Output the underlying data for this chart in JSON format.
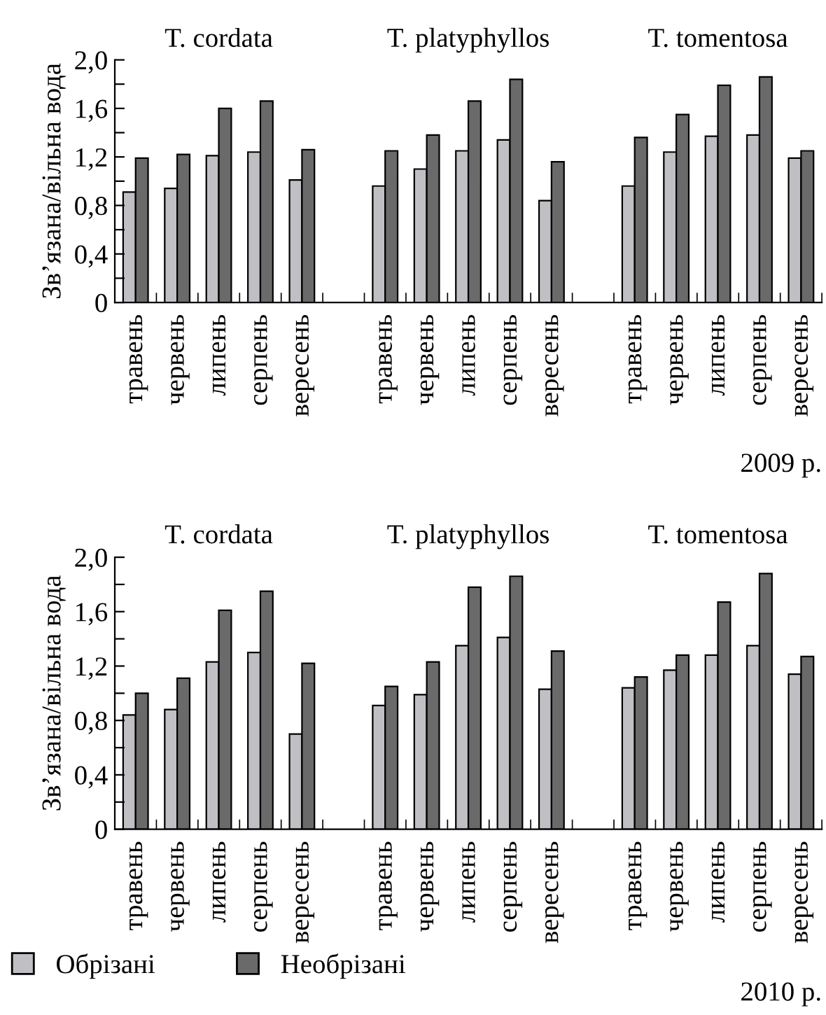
{
  "chart_data": [
    {
      "type": "bar",
      "ylabel": "Зв’язана/вільна вода",
      "categories": [
        "травень",
        "червень",
        "липень",
        "серпень",
        "вересень",
        null,
        "травень",
        "червень",
        "липень",
        "серпень",
        "вересень",
        null,
        "травень",
        "червень",
        "липень",
        "серпень",
        "вересень"
      ],
      "series": [
        {
          "color": "#c0c0c4",
          "values": [
            0.91,
            0.94,
            1.21,
            1.24,
            1.01,
            null,
            0.96,
            1.1,
            1.25,
            1.34,
            0.84,
            null,
            0.96,
            1.24,
            1.37,
            1.38,
            1.19
          ]
        },
        {
          "color": "#6a6a6a",
          "values": [
            1.19,
            1.22,
            1.6,
            1.66,
            1.26,
            null,
            1.25,
            1.38,
            1.66,
            1.84,
            1.16,
            null,
            1.36,
            1.55,
            1.79,
            1.86,
            1.25
          ]
        }
      ],
      "ylim": [
        0,
        2.0
      ],
      "yticks": [
        0,
        {
          "value": 0.2,
          "label": null
        },
        {
          "value": 0.4,
          "label": "0,4"
        },
        {
          "value": 0.6,
          "label": null
        },
        {
          "value": 0.8,
          "label": "0,8"
        },
        {
          "value": 1.0,
          "label": null
        },
        {
          "value": 1.2,
          "label": "1,2"
        },
        {
          "value": 1.4,
          "label": null
        },
        {
          "value": 1.6,
          "label": "1,6"
        },
        {
          "value": 1.8,
          "label": null
        },
        {
          "value": 2.0,
          "label": "2,0"
        }
      ],
      "grid": false,
      "legend": false,
      "annotations": [
        "T. cordata",
        "T. platyphyllos",
        "T. tomentosa",
        "2009 р."
      ]
    },
    {
      "type": "bar",
      "ylabel": "Зв’язана/вільна вода",
      "categories": [
        "травень",
        "червень",
        "липень",
        "серпень",
        "вересень",
        null,
        "травень",
        "червень",
        "липень",
        "серпень",
        "вересень",
        null,
        "травень",
        "червень",
        "липень",
        "серпень",
        "вересень"
      ],
      "series": [
        {
          "name": "Обрізані",
          "color": "#c0c0c4",
          "values": [
            0.84,
            0.88,
            1.23,
            1.3,
            0.7,
            null,
            0.91,
            0.99,
            1.35,
            1.41,
            1.03,
            null,
            1.04,
            1.17,
            1.28,
            1.35,
            1.14
          ]
        },
        {
          "name": "Необрізані",
          "color": "#6a6a6a",
          "values": [
            1.0,
            1.11,
            1.61,
            1.75,
            1.22,
            null,
            1.05,
            1.23,
            1.78,
            1.86,
            1.31,
            null,
            1.12,
            1.28,
            1.67,
            1.88,
            1.27
          ]
        }
      ],
      "ylim": [
        0,
        2.0
      ],
      "yticks": [
        0,
        {
          "value": 0.2,
          "label": null
        },
        {
          "value": 0.4,
          "label": "0,4"
        },
        {
          "value": 0.6,
          "label": null
        },
        {
          "value": 0.8,
          "label": "0,8"
        },
        {
          "value": 1.0,
          "label": null
        },
        {
          "value": 1.2,
          "label": "1,2"
        },
        {
          "value": 1.4,
          "label": null
        },
        {
          "value": 1.6,
          "label": "1,6"
        },
        {
          "value": 1.8,
          "label": null
        },
        {
          "value": 2.0,
          "label": "2,0"
        }
      ],
      "grid": false,
      "legend": "bottom",
      "annotations": [
        "T. cordata",
        "T. platyphyllos",
        "T. tomentosa",
        "2010 р."
      ]
    }
  ]
}
